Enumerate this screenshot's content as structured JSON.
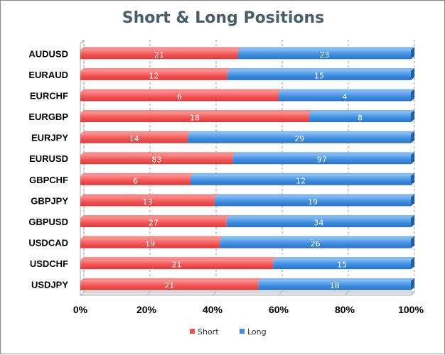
{
  "chart_data": {
    "type": "bar",
    "orientation": "horizontal",
    "stacked": "percent",
    "title": "Short & Long Positions",
    "categories": [
      "AUDUSD",
      "EURAUD",
      "EURCHF",
      "EURGBP",
      "EURJPY",
      "EURUSD",
      "GBPCHF",
      "GBPJPY",
      "GBPUSD",
      "USDCAD",
      "USDCHF",
      "USDJPY"
    ],
    "series": [
      {
        "name": "Short",
        "color": "#f05050",
        "values": [
          21,
          12,
          6,
          18,
          14,
          83,
          6,
          13,
          27,
          19,
          21,
          21
        ]
      },
      {
        "name": "Long",
        "color": "#3f8ee0",
        "values": [
          23,
          15,
          4,
          8,
          29,
          97,
          12,
          19,
          34,
          26,
          15,
          18
        ]
      }
    ],
    "xticks": [
      "0%",
      "20%",
      "40%",
      "60%",
      "80%",
      "100%"
    ],
    "xlim": [
      0,
      100
    ],
    "grid": true,
    "legend": "bottom-center"
  }
}
